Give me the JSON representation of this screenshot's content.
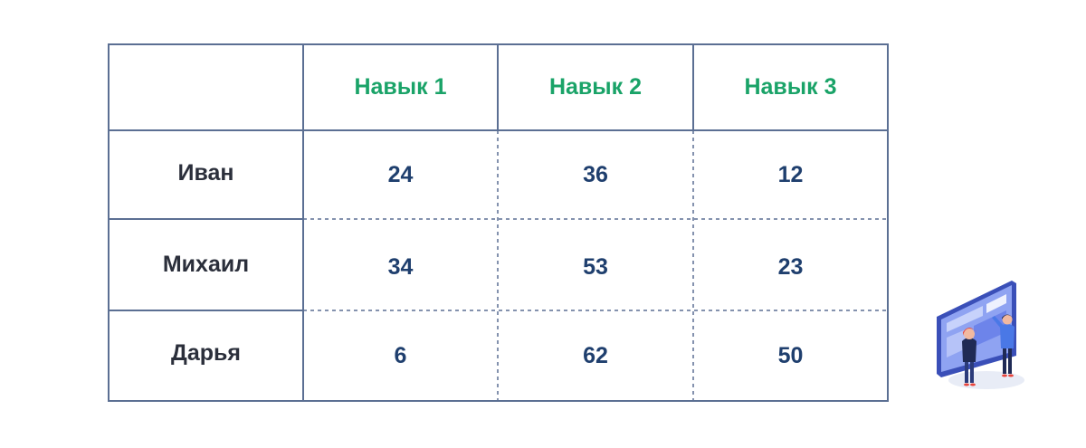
{
  "table": {
    "columns": [
      "Навык 1",
      "Навык 2",
      "Навык 3"
    ],
    "rows": [
      {
        "name": "Иван",
        "values": [
          "24",
          "36",
          "12"
        ]
      },
      {
        "name": "Михаил",
        "values": [
          "34",
          "53",
          "23"
        ]
      },
      {
        "name": "Дарья",
        "values": [
          "6",
          "62",
          "50"
        ]
      }
    ]
  },
  "colors": {
    "header_text": "#1aa368",
    "name_text": "#2b2f3b",
    "value_text": "#1f3f6e",
    "border": "#5b6f93"
  },
  "illustration": {
    "icon": "people-at-screen-illustration"
  }
}
